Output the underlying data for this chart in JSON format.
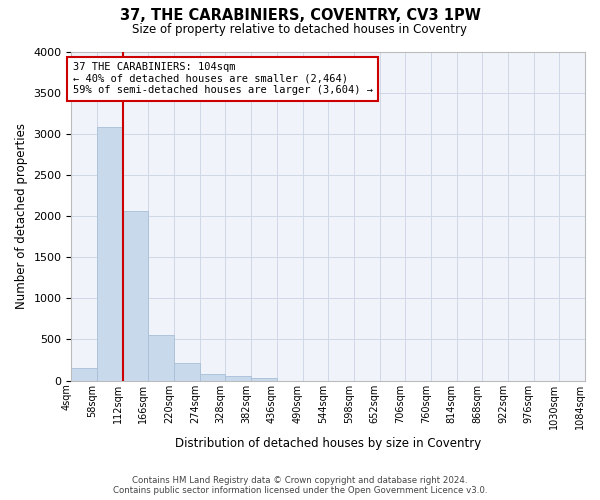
{
  "title": "37, THE CARABINIERS, COVENTRY, CV3 1PW",
  "subtitle": "Size of property relative to detached houses in Coventry",
  "xlabel": "Distribution of detached houses by size in Coventry",
  "ylabel": "Number of detached properties",
  "footer_line1": "Contains HM Land Registry data © Crown copyright and database right 2024.",
  "footer_line2": "Contains public sector information licensed under the Open Government Licence v3.0.",
  "bar_color": "#c9d9ec",
  "bar_edgecolor": "#a8bfd8",
  "grid_color": "#d0d8e8",
  "annotation_box_color": "#cc0000",
  "vline_color": "#cc0000",
  "bin_labels": [
    "4sqm",
    "58sqm",
    "112sqm",
    "166sqm",
    "220sqm",
    "274sqm",
    "328sqm",
    "382sqm",
    "436sqm",
    "490sqm",
    "544sqm",
    "598sqm",
    "652sqm",
    "706sqm",
    "760sqm",
    "814sqm",
    "868sqm",
    "922sqm",
    "976sqm",
    "1030sqm",
    "1084sqm"
  ],
  "bar_values": [
    150,
    3080,
    2060,
    560,
    210,
    80,
    55,
    30,
    0,
    0,
    0,
    0,
    0,
    0,
    0,
    0,
    0,
    0,
    0,
    0
  ],
  "ylim": [
    0,
    4000
  ],
  "yticks": [
    0,
    500,
    1000,
    1500,
    2000,
    2500,
    3000,
    3500,
    4000
  ],
  "property_label": "37 THE CARABINIERS: 104sqm",
  "annotation_line1": "← 40% of detached houses are smaller (2,464)",
  "annotation_line2": "59% of semi-detached houses are larger (3,604) →",
  "vline_x": 2,
  "background_color": "#f0f4fa"
}
